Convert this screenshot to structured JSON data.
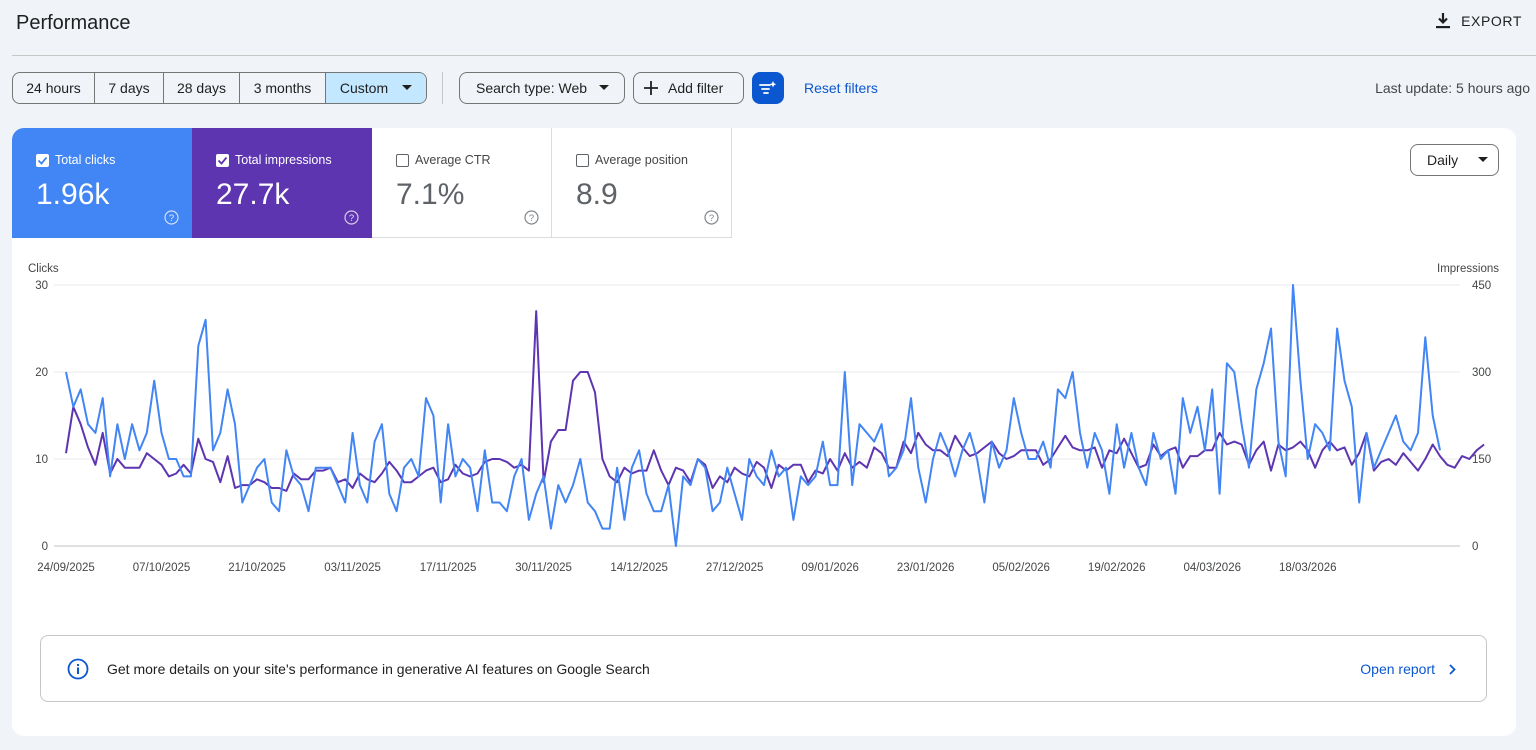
{
  "header": {
    "title": "Performance",
    "export_label": "EXPORT"
  },
  "toolbar": {
    "ranges": [
      "24 hours",
      "7 days",
      "28 days",
      "3 months",
      "Custom"
    ],
    "selected_range": "Custom",
    "search_type_label": "Search type: Web",
    "add_filter_label": "Add filter",
    "reset_filters_label": "Reset filters",
    "last_update": "Last update: 5 hours ago"
  },
  "metrics": {
    "clicks": {
      "label": "Total clicks",
      "value": "1.96k",
      "checked": true,
      "color": "#4285f4"
    },
    "impressions": {
      "label": "Total impressions",
      "value": "27.7k",
      "checked": true,
      "color": "#5e35b1"
    },
    "ctr": {
      "label": "Average CTR",
      "value": "7.1%",
      "checked": false
    },
    "position": {
      "label": "Average position",
      "value": "8.9",
      "checked": false
    }
  },
  "granularity": {
    "selected": "Daily"
  },
  "banner": {
    "message": "Get more details on your site's performance in generative AI features on Google Search",
    "link_label": "Open report"
  },
  "icons": {
    "export": "download-icon",
    "dropdown": "caret-down-icon",
    "add": "plus-icon",
    "filter": "filter-sparkle-icon",
    "help": "help-icon",
    "info": "info-icon",
    "chevron": "chevron-right-icon"
  },
  "chart_data": {
    "type": "line",
    "ylabel_left": "Clicks",
    "ylabel_right": "Impressions",
    "y_ticks_left": [
      "30",
      "20",
      "10",
      "0"
    ],
    "y_ticks_right": [
      "450",
      "300",
      "150",
      "0"
    ],
    "ylim_left": [
      0,
      30
    ],
    "ylim_right": [
      0,
      450
    ],
    "x_tick_labels": [
      "24/09/2025",
      "07/10/2025",
      "21/10/2025",
      "03/11/2025",
      "17/11/2025",
      "30/11/2025",
      "14/12/2025",
      "27/12/2025",
      "09/01/2026",
      "23/01/2026",
      "05/02/2026",
      "19/02/2026",
      "04/03/2026",
      "18/03/2026"
    ],
    "grid": true,
    "series": [
      {
        "name": "Total clicks",
        "color": "#4285f4",
        "values": [
          20,
          16,
          18,
          14,
          13,
          17,
          8,
          14,
          10,
          14,
          11,
          13,
          19,
          13,
          10,
          10,
          8,
          8,
          23,
          26,
          11,
          13,
          18,
          14,
          5,
          7,
          9,
          10,
          5,
          4,
          11,
          8,
          7,
          4,
          9,
          9,
          9,
          7,
          5,
          13,
          7,
          5,
          12,
          14,
          6,
          4,
          9,
          10,
          8,
          17,
          15,
          5,
          14,
          8,
          10,
          9,
          4,
          11,
          5,
          5,
          4,
          8,
          10,
          3,
          6,
          8,
          2,
          7,
          5,
          7,
          10,
          5,
          4,
          2,
          2,
          9,
          3,
          9,
          11,
          6,
          4,
          4,
          7,
          0,
          8,
          7,
          10,
          9,
          4,
          5,
          9,
          6,
          3,
          10,
          8,
          7,
          11,
          8,
          9,
          3,
          8,
          7,
          8,
          12,
          7,
          7,
          20,
          7,
          14,
          13,
          12,
          14,
          8,
          9,
          11,
          17,
          9,
          5,
          10,
          13,
          11,
          8,
          11,
          13,
          10,
          5,
          12,
          9,
          11,
          17,
          13,
          10,
          10,
          12,
          9,
          18,
          17,
          20,
          13,
          9,
          13,
          11,
          6,
          14,
          9,
          13,
          9,
          7,
          13,
          10,
          11,
          6,
          17,
          13,
          16,
          11,
          18,
          6,
          21,
          20,
          14,
          9,
          18,
          21,
          25,
          12,
          8,
          30,
          19,
          10,
          14,
          13,
          11,
          25,
          19,
          16,
          5,
          13,
          9,
          11,
          13,
          15,
          12,
          11,
          13,
          24,
          15,
          11
        ]
      },
      {
        "name": "Total impressions",
        "color": "#5e35b1",
        "values": [
          160,
          240,
          210,
          170,
          140,
          195,
          125,
          150,
          135,
          135,
          135,
          160,
          150,
          140,
          120,
          125,
          140,
          125,
          185,
          150,
          145,
          110,
          155,
          100,
          105,
          105,
          115,
          110,
          100,
          100,
          95,
          125,
          115,
          115,
          130,
          130,
          135,
          110,
          115,
          100,
          125,
          115,
          110,
          125,
          145,
          130,
          110,
          110,
          120,
          130,
          135,
          110,
          115,
          140,
          125,
          120,
          125,
          145,
          150,
          150,
          145,
          135,
          140,
          130,
          405,
          110,
          180,
          200,
          200,
          285,
          300,
          300,
          265,
          150,
          120,
          110,
          135,
          125,
          130,
          130,
          165,
          130,
          105,
          135,
          130,
          110,
          150,
          140,
          100,
          120,
          110,
          135,
          125,
          120,
          145,
          135,
          100,
          140,
          130,
          140,
          140,
          110,
          130,
          125,
          150,
          130,
          160,
          135,
          145,
          135,
          170,
          160,
          135,
          135,
          180,
          160,
          195,
          175,
          165,
          165,
          155,
          190,
          170,
          155,
          160,
          170,
          180,
          160,
          150,
          155,
          165,
          165,
          165,
          140,
          150,
          170,
          190,
          170,
          165,
          165,
          170,
          135,
          165,
          160,
          185,
          160,
          135,
          140,
          175,
          155,
          165,
          170,
          135,
          155,
          155,
          165,
          165,
          195,
          175,
          180,
          175,
          140,
          165,
          180,
          130,
          175,
          165,
          170,
          180,
          165,
          135,
          165,
          180,
          165,
          170,
          140,
          160,
          195,
          130,
          145,
          150,
          140,
          160,
          145,
          130,
          150,
          175,
          155,
          140,
          135,
          155,
          150,
          165,
          175
        ]
      }
    ]
  }
}
